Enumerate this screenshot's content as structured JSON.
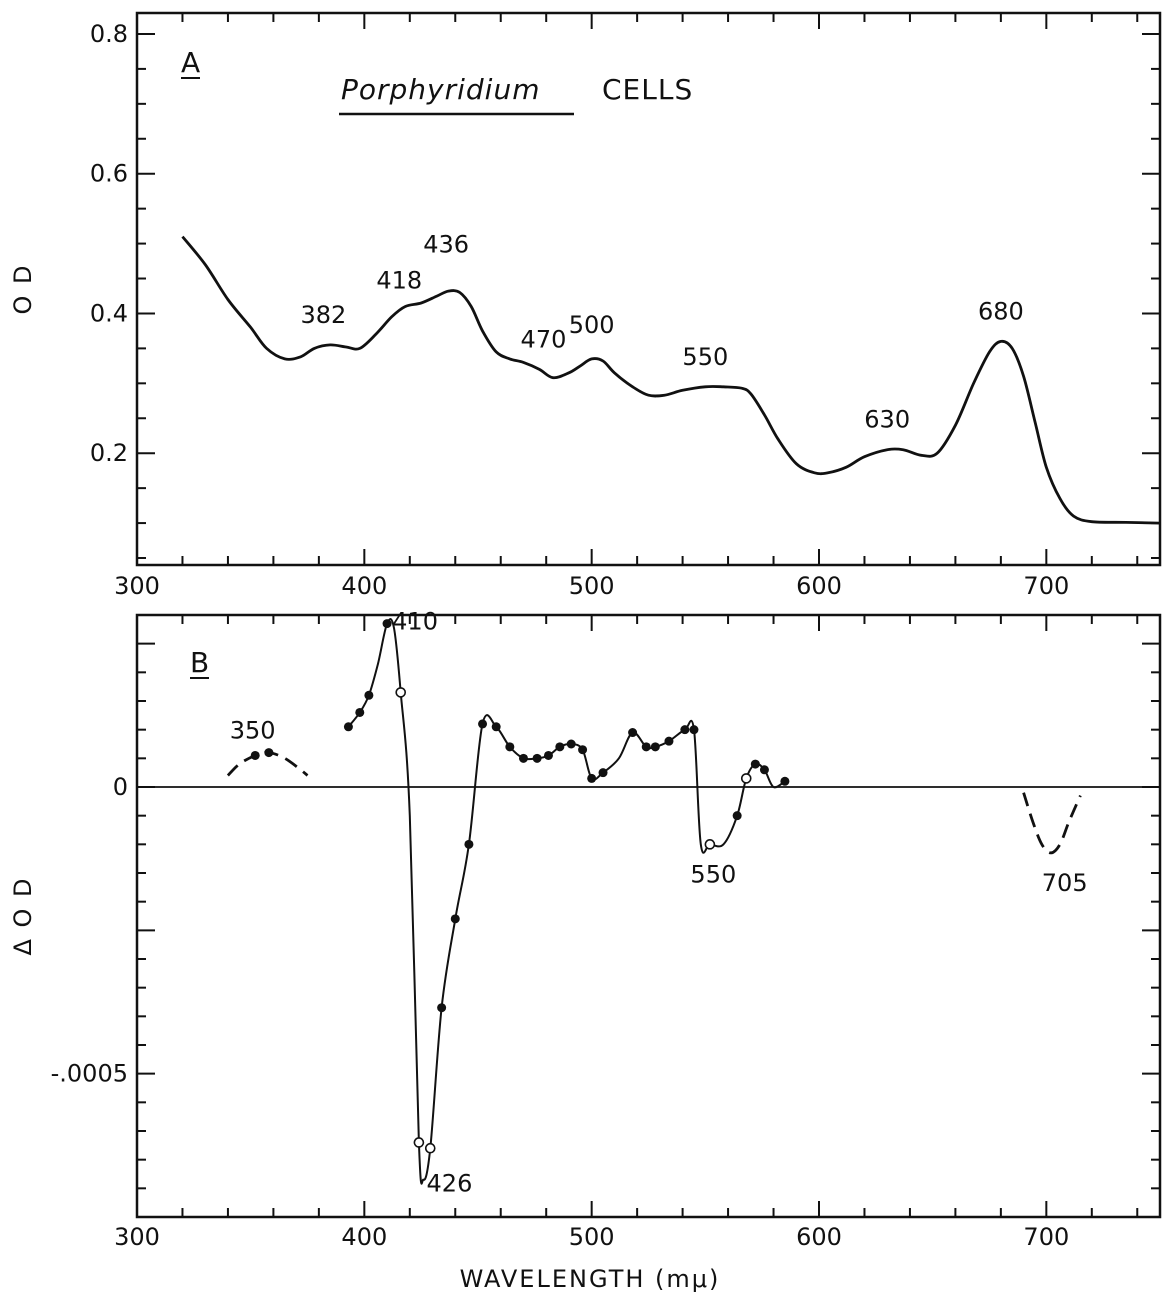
{
  "chart_data": [
    {
      "type": "line",
      "panel_label": "A",
      "title_italic": "Porphyridium",
      "title_rest": "CELLS",
      "xlabel": "",
      "ylabel": "O D",
      "xlim": [
        300,
        750
      ],
      "ylim": [
        0.04,
        0.83
      ],
      "x_ticks": [
        "300",
        "400",
        "500",
        "600",
        "700"
      ],
      "y_ticks": [
        "0.2",
        "0.4",
        "0.6",
        "0.8"
      ],
      "series": [
        {
          "points": [
            [
              320,
              0.51
            ],
            [
              330,
              0.47
            ],
            [
              340,
              0.42
            ],
            [
              350,
              0.38
            ],
            [
              357,
              0.35
            ],
            [
              365,
              0.335
            ],
            [
              372,
              0.338
            ],
            [
              378,
              0.35
            ],
            [
              385,
              0.355
            ],
            [
              392,
              0.352
            ],
            [
              398,
              0.35
            ],
            [
              405,
              0.37
            ],
            [
              412,
              0.395
            ],
            [
              418,
              0.41
            ],
            [
              425,
              0.415
            ],
            [
              432,
              0.425
            ],
            [
              437,
              0.432
            ],
            [
              442,
              0.43
            ],
            [
              447,
              0.41
            ],
            [
              452,
              0.375
            ],
            [
              458,
              0.345
            ],
            [
              464,
              0.335
            ],
            [
              470,
              0.33
            ],
            [
              477,
              0.32
            ],
            [
              483,
              0.308
            ],
            [
              490,
              0.315
            ],
            [
              495,
              0.325
            ],
            [
              500,
              0.335
            ],
            [
              505,
              0.332
            ],
            [
              510,
              0.315
            ],
            [
              518,
              0.295
            ],
            [
              525,
              0.283
            ],
            [
              532,
              0.283
            ],
            [
              540,
              0.29
            ],
            [
              550,
              0.295
            ],
            [
              558,
              0.295
            ],
            [
              566,
              0.293
            ],
            [
              570,
              0.285
            ],
            [
              576,
              0.255
            ],
            [
              582,
              0.22
            ],
            [
              590,
              0.185
            ],
            [
              598,
              0.172
            ],
            [
              604,
              0.172
            ],
            [
              612,
              0.18
            ],
            [
              620,
              0.195
            ],
            [
              630,
              0.205
            ],
            [
              637,
              0.205
            ],
            [
              645,
              0.197
            ],
            [
              652,
              0.2
            ],
            [
              660,
              0.24
            ],
            [
              668,
              0.3
            ],
            [
              675,
              0.345
            ],
            [
              680,
              0.36
            ],
            [
              685,
              0.35
            ],
            [
              690,
              0.31
            ],
            [
              695,
              0.245
            ],
            [
              700,
              0.18
            ],
            [
              706,
              0.135
            ],
            [
              712,
              0.11
            ],
            [
              720,
              0.102
            ],
            [
              735,
              0.101
            ],
            [
              750,
              0.1
            ]
          ]
        }
      ],
      "annotations": [
        {
          "text": "382",
          "x": 382,
          "y": 0.355
        },
        {
          "text": "418",
          "x": 418,
          "y": 0.41
        },
        {
          "text": "436",
          "x": 436,
          "y": 0.43
        },
        {
          "text": "470",
          "x": 470,
          "y": 0.33
        },
        {
          "text": "500",
          "x": 500,
          "y": 0.335
        },
        {
          "text": "550",
          "x": 550,
          "y": 0.295
        },
        {
          "text": "630",
          "x": 630,
          "y": 0.205
        },
        {
          "text": "680",
          "x": 680,
          "y": 0.36
        }
      ]
    },
    {
      "type": "line",
      "panel_label": "B",
      "xlabel": "WAVELENGTH (mμ)",
      "ylabel": "Δ O D",
      "xlim": [
        300,
        750
      ],
      "ylim": [
        -0.00075,
        0.0003
      ],
      "x_ticks": [
        "300",
        "400",
        "500",
        "600",
        "700"
      ],
      "y_ticks": [
        "0",
        "-.0005"
      ],
      "series": [
        {
          "style": "solid",
          "points": [
            [
              393,
              0.000105
            ],
            [
              398,
              0.00013
            ],
            [
              402,
              0.00016
            ],
            [
              406,
              0.000215
            ],
            [
              410,
              0.000285
            ],
            [
              413,
              0.000278
            ],
            [
              416,
              0.000165
            ],
            [
              420,
              -5e-05
            ],
            [
              424,
              -0.00062
            ],
            [
              426,
              -0.000685
            ],
            [
              429,
              -0.00063
            ],
            [
              434,
              -0.000385
            ],
            [
              440,
              -0.00023
            ],
            [
              446,
              -0.0001
            ],
            [
              452,
              0.00011
            ],
            [
              458,
              0.000105
            ],
            [
              464,
              7e-05
            ],
            [
              470,
              5e-05
            ],
            [
              476,
              5e-05
            ],
            [
              481,
              5.5e-05
            ],
            [
              486,
              7e-05
            ],
            [
              491,
              7.5e-05
            ],
            [
              496,
              6.5e-05
            ],
            [
              500,
              1.5e-05
            ],
            [
              505,
              2.5e-05
            ],
            [
              512,
              5e-05
            ],
            [
              518,
              9.5e-05
            ],
            [
              524,
              7e-05
            ],
            [
              528,
              7e-05
            ],
            [
              534,
              8e-05
            ],
            [
              541,
              0.0001
            ],
            [
              545,
              0.0001
            ],
            [
              548,
              -0.0001
            ],
            [
              552,
              -0.0001
            ],
            [
              558,
              -0.0001
            ],
            [
              564,
              -5e-05
            ],
            [
              568,
              1.5e-05
            ],
            [
              572,
              4e-05
            ],
            [
              576,
              3e-05
            ],
            [
              580,
              0.0
            ],
            [
              585,
              1e-05
            ]
          ]
        },
        {
          "style": "dashed",
          "points": [
            [
              340,
              2e-05
            ],
            [
              345,
              4e-05
            ],
            [
              352,
              5.5e-05
            ],
            [
              358,
              6e-05
            ],
            [
              365,
              5e-05
            ],
            [
              372,
              3e-05
            ],
            [
              375,
              2e-05
            ]
          ]
        },
        {
          "style": "dashed",
          "points": [
            [
              690,
              -1e-05
            ],
            [
              694,
              -6e-05
            ],
            [
              698,
              -0.0001
            ],
            [
              702,
              -0.000115
            ],
            [
              706,
              -0.0001
            ],
            [
              710,
              -6e-05
            ],
            [
              715,
              -1.5e-05
            ]
          ]
        }
      ],
      "markers_filled": [
        [
          393,
          0.000105
        ],
        [
          398,
          0.00013
        ],
        [
          402,
          0.00016
        ],
        [
          410,
          0.000285
        ],
        [
          434,
          -0.000385
        ],
        [
          440,
          -0.00023
        ],
        [
          446,
          -0.0001
        ],
        [
          452,
          0.00011
        ],
        [
          458,
          0.000105
        ],
        [
          464,
          7e-05
        ],
        [
          470,
          5e-05
        ],
        [
          476,
          5e-05
        ],
        [
          481,
          5.5e-05
        ],
        [
          486,
          7e-05
        ],
        [
          491,
          7.5e-05
        ],
        [
          496,
          6.5e-05
        ],
        [
          500,
          1.5e-05
        ],
        [
          505,
          2.5e-05
        ],
        [
          518,
          9.5e-05
        ],
        [
          524,
          7e-05
        ],
        [
          528,
          7e-05
        ],
        [
          534,
          8e-05
        ],
        [
          541,
          0.0001
        ],
        [
          545,
          0.0001
        ],
        [
          564,
          -5e-05
        ],
        [
          572,
          4e-05
        ],
        [
          576,
          3e-05
        ],
        [
          585,
          1e-05
        ],
        [
          352,
          5.5e-05
        ],
        [
          358,
          6e-05
        ]
      ],
      "markers_open": [
        [
          416,
          0.000165
        ],
        [
          424,
          -0.00062
        ],
        [
          429,
          -0.00063
        ],
        [
          552,
          -0.0001
        ],
        [
          568,
          1.5e-05
        ]
      ],
      "annotations": [
        {
          "text": "410",
          "x": 410,
          "y": 0.000285
        },
        {
          "text": "426",
          "x": 426,
          "y": -0.000685
        },
        {
          "text": "550",
          "x": 550,
          "y": -0.0001
        },
        {
          "text": "350",
          "x": 350,
          "y": 6e-05
        },
        {
          "text": "705",
          "x": 705,
          "y": -0.000115
        }
      ]
    }
  ]
}
